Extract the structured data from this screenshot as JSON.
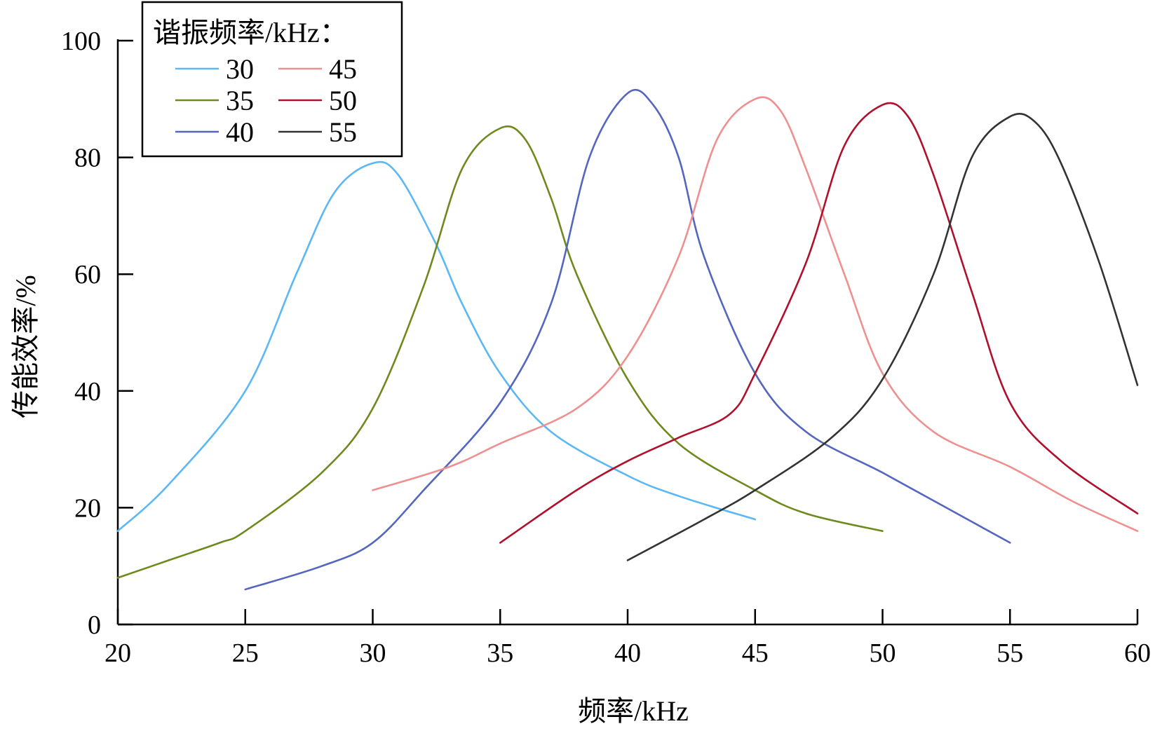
{
  "chart_data": {
    "type": "line",
    "xlabel": "频率/kHz",
    "ylabel": "传能效率/%",
    "xlim": [
      20,
      60
    ],
    "ylim": [
      0,
      100
    ],
    "x_ticks": [
      20,
      25,
      30,
      35,
      40,
      45,
      50,
      55,
      60
    ],
    "y_ticks": [
      0,
      20,
      40,
      60,
      80,
      100
    ],
    "grid": false,
    "legend": {
      "title": "谐振频率/kHz：",
      "placement": "top-left",
      "columns": 2
    },
    "series": [
      {
        "name": "30",
        "color": "#5BB8F5",
        "points": [
          [
            20,
            16
          ],
          [
            22,
            24
          ],
          [
            25,
            40
          ],
          [
            27,
            60
          ],
          [
            28.5,
            74
          ],
          [
            30,
            79
          ],
          [
            31,
            77
          ],
          [
            32.5,
            65
          ],
          [
            33.5,
            55
          ],
          [
            35,
            43
          ],
          [
            37,
            33
          ],
          [
            40,
            25.5
          ],
          [
            42,
            22
          ],
          [
            45,
            18
          ]
        ]
      },
      {
        "name": "35",
        "color": "#6E8A1E",
        "points": [
          [
            20,
            8
          ],
          [
            22,
            11
          ],
          [
            24,
            14
          ],
          [
            25,
            16
          ],
          [
            28,
            26
          ],
          [
            30,
            37
          ],
          [
            32,
            58
          ],
          [
            33.5,
            78
          ],
          [
            35,
            85
          ],
          [
            36,
            83
          ],
          [
            37,
            73
          ],
          [
            38,
            60
          ],
          [
            40,
            42
          ],
          [
            42,
            31
          ],
          [
            45,
            23
          ],
          [
            47,
            19
          ],
          [
            50,
            16
          ]
        ]
      },
      {
        "name": "40",
        "color": "#5466C0",
        "points": [
          [
            25,
            6
          ],
          [
            28,
            10
          ],
          [
            30,
            14
          ],
          [
            32,
            23
          ],
          [
            35,
            38
          ],
          [
            37,
            55
          ],
          [
            38.5,
            80
          ],
          [
            40,
            91
          ],
          [
            41,
            89
          ],
          [
            42,
            80
          ],
          [
            43,
            63
          ],
          [
            45,
            43
          ],
          [
            47,
            33
          ],
          [
            50,
            26
          ],
          [
            52.5,
            20
          ],
          [
            55,
            14
          ]
        ]
      },
      {
        "name": "45",
        "color": "#EE9090",
        "points": [
          [
            30,
            23
          ],
          [
            33,
            27
          ],
          [
            35,
            31
          ],
          [
            38,
            37
          ],
          [
            40,
            46
          ],
          [
            42,
            63
          ],
          [
            43.5,
            83
          ],
          [
            45,
            90
          ],
          [
            46,
            88
          ],
          [
            47,
            78
          ],
          [
            48.5,
            60
          ],
          [
            50,
            43
          ],
          [
            52,
            33
          ],
          [
            55,
            27
          ],
          [
            57.5,
            21
          ],
          [
            60,
            16
          ]
        ]
      },
      {
        "name": "50",
        "color": "#B0102C",
        "points": [
          [
            35,
            14
          ],
          [
            38,
            23
          ],
          [
            40,
            28
          ],
          [
            42,
            32
          ],
          [
            44,
            36
          ],
          [
            45,
            43
          ],
          [
            47,
            62
          ],
          [
            48.5,
            82
          ],
          [
            50,
            89
          ],
          [
            51,
            87
          ],
          [
            52,
            77
          ],
          [
            53.5,
            57
          ],
          [
            55,
            38
          ],
          [
            57,
            28
          ],
          [
            60,
            19
          ]
        ]
      },
      {
        "name": "55",
        "color": "#333333",
        "points": [
          [
            40,
            11
          ],
          [
            43,
            18
          ],
          [
            45,
            23
          ],
          [
            48,
            32
          ],
          [
            50,
            42
          ],
          [
            52,
            60
          ],
          [
            53.5,
            80
          ],
          [
            55,
            87
          ],
          [
            56,
            86
          ],
          [
            57,
            79
          ],
          [
            58.5,
            62
          ],
          [
            60,
            41
          ]
        ]
      }
    ]
  }
}
